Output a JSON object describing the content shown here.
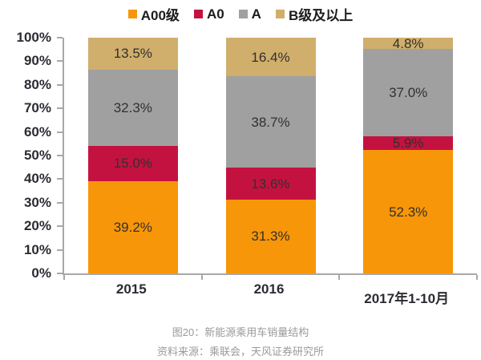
{
  "chart_data": {
    "type": "bar",
    "subtype": "stacked-100-percent",
    "title": "图20：新能源乘用车销量结构",
    "source": "资料来源：乘联会，天风证券研究所",
    "categories": [
      "2015",
      "2016",
      "2017年1-10月"
    ],
    "series": [
      {
        "name": "A00级",
        "color": "#F79608",
        "values": [
          39.2,
          31.3,
          52.3
        ]
      },
      {
        "name": "A0",
        "color": "#C41240",
        "values": [
          15.0,
          13.6,
          5.9
        ]
      },
      {
        "name": "A",
        "color": "#A0A0A0",
        "values": [
          32.3,
          38.7,
          37.0
        ]
      },
      {
        "name": "B级及以上",
        "color": "#D0AE6C",
        "values": [
          13.5,
          16.4,
          4.8
        ]
      }
    ],
    "xlabel": "",
    "ylabel": "",
    "ylim": [
      0,
      100
    ],
    "ytick_step": 10,
    "ytick_suffix": "%",
    "value_suffix": "%",
    "legend_position": "top",
    "grid": false,
    "axis_color": "#a8a8a8",
    "label_color": "#33302e"
  }
}
